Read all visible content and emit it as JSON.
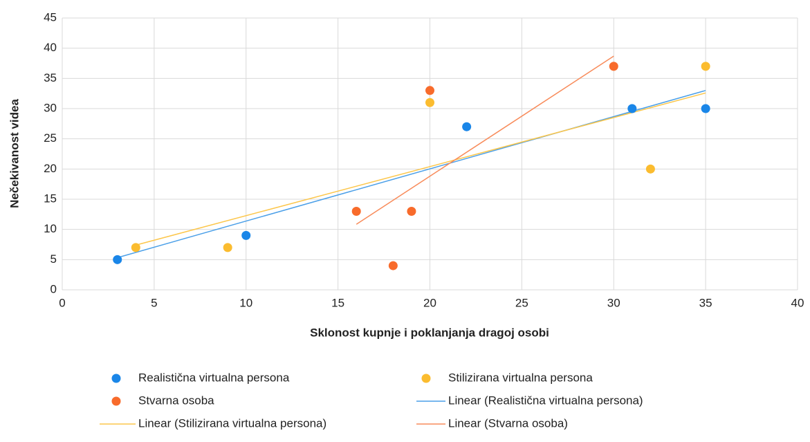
{
  "chart_data": {
    "type": "scatter",
    "x_label": "Sklonost kupnje i poklanjanja dragoj osobi",
    "y_label": "Nečekivanost videa",
    "xlim": [
      0,
      40
    ],
    "xticks": [
      0,
      5,
      10,
      15,
      20,
      25,
      30,
      35,
      40
    ],
    "ylim": [
      0,
      45
    ],
    "yticks": [
      0,
      5,
      10,
      15,
      20,
      25,
      30,
      35,
      40,
      45
    ],
    "grid": true,
    "series": [
      {
        "name": "Realistična virtualna persona",
        "color": "#1a86e8",
        "x": [
          3,
          10,
          22,
          31,
          35
        ],
        "values": [
          5,
          9,
          27,
          30,
          30
        ]
      },
      {
        "name": "Stilizirana virtualna persona",
        "color": "#fbbc2f",
        "x": [
          4,
          9,
          20,
          32,
          35
        ],
        "values": [
          7,
          7,
          31,
          20,
          37
        ]
      },
      {
        "name": "Stvarna osoba",
        "color": "#f86b2b",
        "x": [
          16,
          18,
          19,
          20,
          30
        ],
        "values": [
          13,
          4,
          13,
          33,
          37
        ]
      }
    ],
    "trendlines": [
      {
        "name": "Linear (Realistična virtualna persona)",
        "color": "#4a9fe8",
        "series": 0
      },
      {
        "name": "Linear (Stilizirana virtualna persona)",
        "color": "#fcc64a",
        "series": 1
      },
      {
        "name": "Linear (Stvarna osoba)",
        "color": "#f88b5a",
        "series": 2
      }
    ]
  }
}
